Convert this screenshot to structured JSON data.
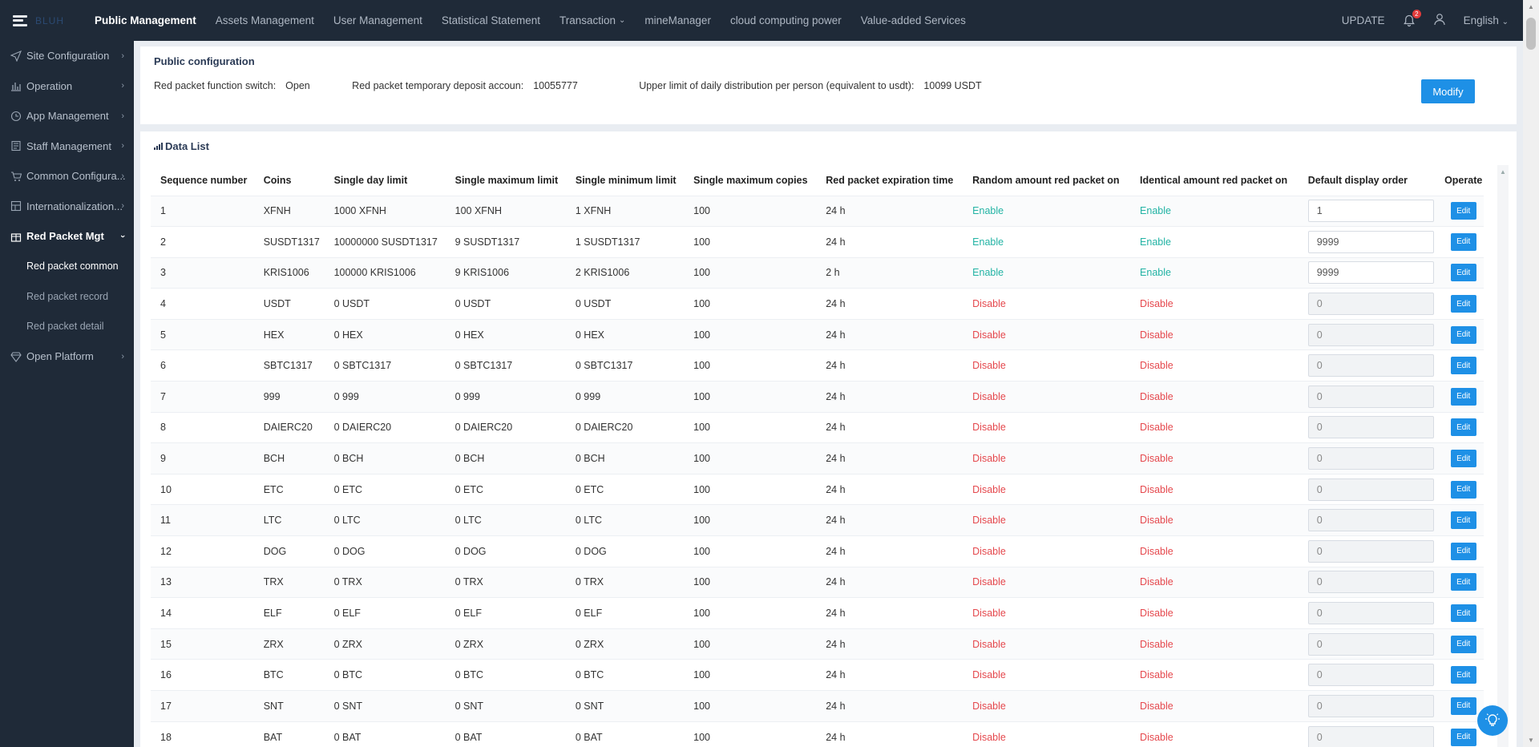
{
  "brand": {
    "logo_text": "BLUH"
  },
  "nav": {
    "items": [
      {
        "label": "Public Management",
        "active": true
      },
      {
        "label": "Assets Management"
      },
      {
        "label": "User Management"
      },
      {
        "label": "Statistical Statement"
      },
      {
        "label": "Transaction",
        "dropdown": true
      },
      {
        "label": "mineManager"
      },
      {
        "label": "cloud computing power"
      },
      {
        "label": "Value-added Services"
      }
    ],
    "update_label": "UPDATE",
    "notification_count": "2",
    "language": "English"
  },
  "sidebar": {
    "items": [
      {
        "label": "Site Configuration",
        "icon": "send-icon"
      },
      {
        "label": "Operation",
        "icon": "bar-chart-icon"
      },
      {
        "label": "App Management",
        "icon": "clock-icon"
      },
      {
        "label": "Staff Management",
        "icon": "book-icon"
      },
      {
        "label": "Common Configura...",
        "icon": "cart-icon"
      },
      {
        "label": "Internationalization...",
        "icon": "grid-icon"
      },
      {
        "label": "Red Packet Mgt",
        "icon": "gift-icon",
        "open": true
      },
      {
        "label": "Open Platform",
        "icon": "diamond-icon"
      }
    ],
    "sub_items": [
      {
        "label": "Red packet common",
        "active": true
      },
      {
        "label": "Red packet record"
      },
      {
        "label": "Red packet detail"
      }
    ]
  },
  "config": {
    "title": "Public configuration",
    "switch_label": "Red packet function switch:",
    "switch_value": "Open",
    "deposit_label": "Red packet temporary deposit accoun:",
    "deposit_value": "10055777",
    "limit_label": "Upper limit of daily distribution per person (equivalent to usdt):",
    "limit_value": "10099 USDT",
    "modify_label": "Modify"
  },
  "list": {
    "title": "Data List",
    "columns": [
      "Sequence number",
      "Coins",
      "Single day limit",
      "Single maximum limit",
      "Single minimum limit",
      "Single maximum copies",
      "Red packet expiration time",
      "Random amount red packet on",
      "Identical amount red packet on",
      "Default display order",
      "Operate"
    ],
    "edit_label": "Edit",
    "rows": [
      {
        "seq": "1",
        "coin": "XFNH",
        "day": "1000 XFNH",
        "max": "100 XFNH",
        "min": "1 XFNH",
        "copies": "100",
        "expire": "24 h",
        "random": "Enable",
        "identical": "Enable",
        "order": "1",
        "editable": true
      },
      {
        "seq": "2",
        "coin": "SUSDT1317",
        "day": "10000000 SUSDT1317",
        "max": "9 SUSDT1317",
        "min": "1 SUSDT1317",
        "copies": "100",
        "expire": "24 h",
        "random": "Enable",
        "identical": "Enable",
        "order": "9999",
        "editable": true
      },
      {
        "seq": "3",
        "coin": "KRIS1006",
        "day": "100000 KRIS1006",
        "max": "9 KRIS1006",
        "min": "2 KRIS1006",
        "copies": "100",
        "expire": "2 h",
        "random": "Enable",
        "identical": "Enable",
        "order": "9999",
        "editable": true
      },
      {
        "seq": "4",
        "coin": "USDT",
        "day": "0 USDT",
        "max": "0 USDT",
        "min": "0 USDT",
        "copies": "100",
        "expire": "24 h",
        "random": "Disable",
        "identical": "Disable",
        "order": "0",
        "editable": false
      },
      {
        "seq": "5",
        "coin": "HEX",
        "day": "0 HEX",
        "max": "0 HEX",
        "min": "0 HEX",
        "copies": "100",
        "expire": "24 h",
        "random": "Disable",
        "identical": "Disable",
        "order": "0",
        "editable": false
      },
      {
        "seq": "6",
        "coin": "SBTC1317",
        "day": "0 SBTC1317",
        "max": "0 SBTC1317",
        "min": "0 SBTC1317",
        "copies": "100",
        "expire": "24 h",
        "random": "Disable",
        "identical": "Disable",
        "order": "0",
        "editable": false
      },
      {
        "seq": "7",
        "coin": "999",
        "day": "0 999",
        "max": "0 999",
        "min": "0 999",
        "copies": "100",
        "expire": "24 h",
        "random": "Disable",
        "identical": "Disable",
        "order": "0",
        "editable": false
      },
      {
        "seq": "8",
        "coin": "DAIERC20",
        "day": "0 DAIERC20",
        "max": "0 DAIERC20",
        "min": "0 DAIERC20",
        "copies": "100",
        "expire": "24 h",
        "random": "Disable",
        "identical": "Disable",
        "order": "0",
        "editable": false
      },
      {
        "seq": "9",
        "coin": "BCH",
        "day": "0 BCH",
        "max": "0 BCH",
        "min": "0 BCH",
        "copies": "100",
        "expire": "24 h",
        "random": "Disable",
        "identical": "Disable",
        "order": "0",
        "editable": false
      },
      {
        "seq": "10",
        "coin": "ETC",
        "day": "0 ETC",
        "max": "0 ETC",
        "min": "0 ETC",
        "copies": "100",
        "expire": "24 h",
        "random": "Disable",
        "identical": "Disable",
        "order": "0",
        "editable": false
      },
      {
        "seq": "11",
        "coin": "LTC",
        "day": "0 LTC",
        "max": "0 LTC",
        "min": "0 LTC",
        "copies": "100",
        "expire": "24 h",
        "random": "Disable",
        "identical": "Disable",
        "order": "0",
        "editable": false
      },
      {
        "seq": "12",
        "coin": "DOG",
        "day": "0 DOG",
        "max": "0 DOG",
        "min": "0 DOG",
        "copies": "100",
        "expire": "24 h",
        "random": "Disable",
        "identical": "Disable",
        "order": "0",
        "editable": false
      },
      {
        "seq": "13",
        "coin": "TRX",
        "day": "0 TRX",
        "max": "0 TRX",
        "min": "0 TRX",
        "copies": "100",
        "expire": "24 h",
        "random": "Disable",
        "identical": "Disable",
        "order": "0",
        "editable": false
      },
      {
        "seq": "14",
        "coin": "ELF",
        "day": "0 ELF",
        "max": "0 ELF",
        "min": "0 ELF",
        "copies": "100",
        "expire": "24 h",
        "random": "Disable",
        "identical": "Disable",
        "order": "0",
        "editable": false
      },
      {
        "seq": "15",
        "coin": "ZRX",
        "day": "0 ZRX",
        "max": "0 ZRX",
        "min": "0 ZRX",
        "copies": "100",
        "expire": "24 h",
        "random": "Disable",
        "identical": "Disable",
        "order": "0",
        "editable": false
      },
      {
        "seq": "16",
        "coin": "BTC",
        "day": "0 BTC",
        "max": "0 BTC",
        "min": "0 BTC",
        "copies": "100",
        "expire": "24 h",
        "random": "Disable",
        "identical": "Disable",
        "order": "0",
        "editable": false
      },
      {
        "seq": "17",
        "coin": "SNT",
        "day": "0 SNT",
        "max": "0 SNT",
        "min": "0 SNT",
        "copies": "100",
        "expire": "24 h",
        "random": "Disable",
        "identical": "Disable",
        "order": "0",
        "editable": false
      },
      {
        "seq": "18",
        "coin": "BAT",
        "day": "0 BAT",
        "max": "0 BAT",
        "min": "0 BAT",
        "copies": "100",
        "expire": "24 h",
        "random": "Disable",
        "identical": "Disable",
        "order": "0",
        "editable": false
      }
    ]
  },
  "colors": {
    "topbar": "#1f2a38",
    "accent": "#1e90e6",
    "enable": "#22b3a4",
    "disable": "#e5484d"
  }
}
